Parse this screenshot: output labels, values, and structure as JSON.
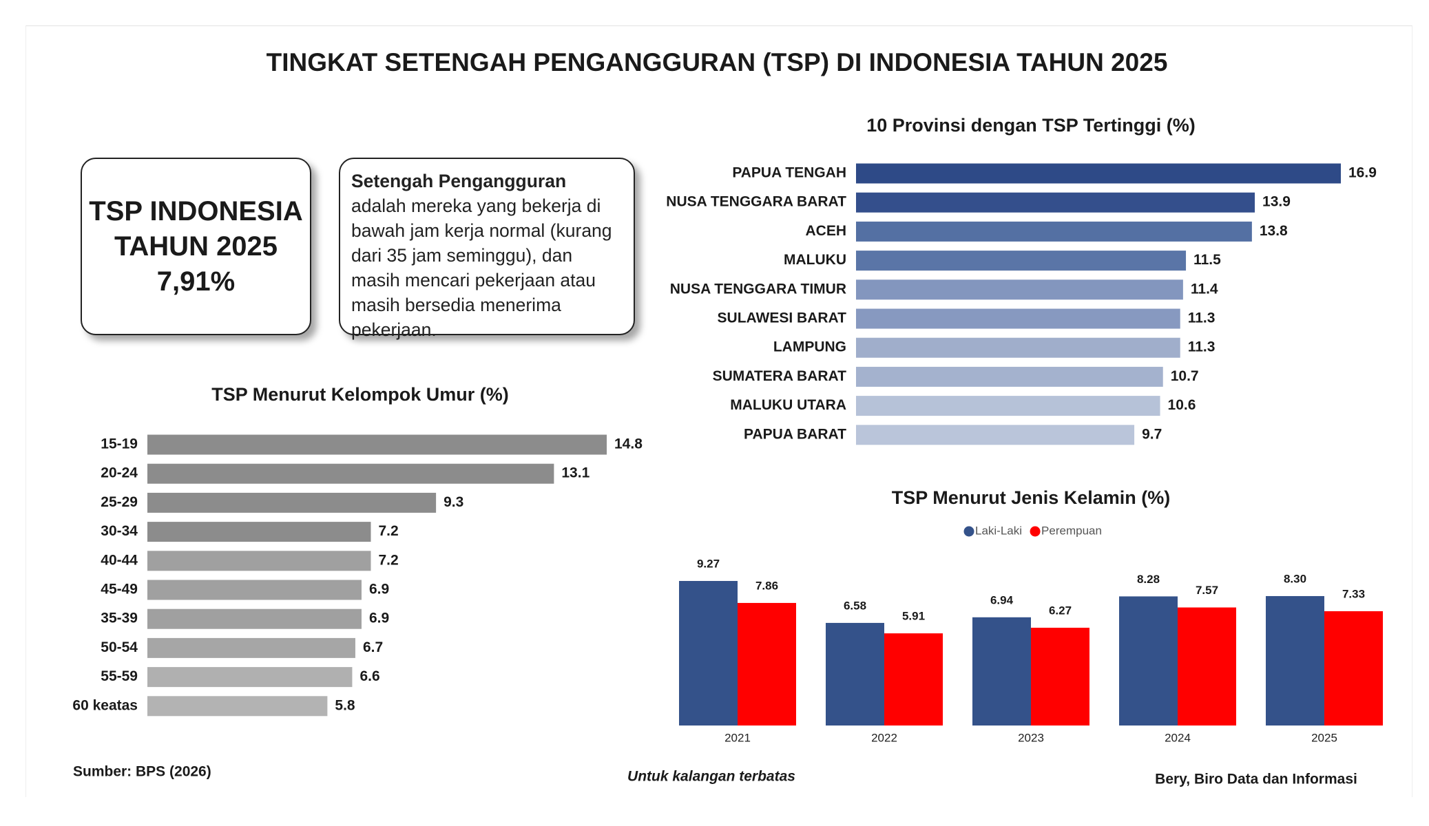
{
  "title": "TINGKAT SETENGAH PENGANGGURAN (TSP) DI INDONESIA TAHUN 2025",
  "summary": {
    "line1": "TSP INDONESIA",
    "line2": "TAHUN 2025",
    "value": "7,91%"
  },
  "definition": {
    "term": "Setengah Pengangguran",
    "text": "adalah mereka yang bekerja di bawah jam kerja normal (kurang dari 35 jam  seminggu), dan masih mencari pekerjaan atau masih bersedia menerima pekerjaan."
  },
  "footer": {
    "source": "Sumber: BPS (2026)",
    "note": "Untuk kalangan terbatas",
    "author": "Bery, Biro Data dan Informasi"
  },
  "chart_data": [
    {
      "type": "bar",
      "orientation": "horizontal",
      "title": "10 Provinsi dengan TSP Tertinggi (%)",
      "categories": [
        "PAPUA TENGAH",
        "NUSA TENGGARA BARAT",
        "ACEH",
        "MALUKU",
        "NUSA TENGGARA TIMUR",
        "SULAWESI BARAT",
        "LAMPUNG",
        "SUMATERA BARAT",
        "MALUKU UTARA",
        "PAPUA BARAT"
      ],
      "values": [
        16.9,
        13.9,
        13.8,
        11.5,
        11.4,
        11.3,
        11.3,
        10.7,
        10.6,
        9.7
      ],
      "colors": [
        "#2e4a87",
        "#344f8c",
        "#5470a3",
        "#5a75a7",
        "#8396be",
        "#8799c0",
        "#a0aecb",
        "#a4b2ce",
        "#b6c2d8",
        "#bac5da"
      ]
    },
    {
      "type": "bar",
      "orientation": "horizontal",
      "title": "TSP Menurut Kelompok Umur (%)",
      "categories": [
        "15-19",
        "20-24",
        "25-29",
        "30-34",
        "40-44",
        "45-49",
        "35-39",
        "50-54",
        "55-59",
        "60 keatas"
      ],
      "values": [
        14.8,
        13.1,
        9.3,
        7.2,
        7.2,
        6.9,
        6.9,
        6.7,
        6.6,
        5.8
      ],
      "colors": [
        "#8c8c8c",
        "#8c8c8c",
        "#8c8c8c",
        "#8c8c8c",
        "#a0a0a0",
        "#a0a0a0",
        "#a0a0a0",
        "#a6a6a6",
        "#b0b0b0",
        "#b3b3b3"
      ]
    },
    {
      "type": "bar",
      "orientation": "vertical",
      "title": "TSP Menurut Jenis Kelamin (%)",
      "categories": [
        "2021",
        "2022",
        "2023",
        "2024",
        "2025"
      ],
      "series": [
        {
          "name": "Laki-Laki",
          "color": "#34528a",
          "values": [
            9.27,
            6.58,
            6.94,
            8.28,
            8.3
          ],
          "value_labels": [
            "9.27",
            "6.58",
            "6.94",
            "8.28",
            "8.30"
          ]
        },
        {
          "name": "Perempuan",
          "color": "#ff0000",
          "values": [
            7.86,
            5.91,
            6.27,
            7.57,
            7.33
          ],
          "value_labels": [
            "7.86",
            "5.91",
            "6.27",
            "7.57",
            "7.33"
          ]
        }
      ]
    }
  ]
}
